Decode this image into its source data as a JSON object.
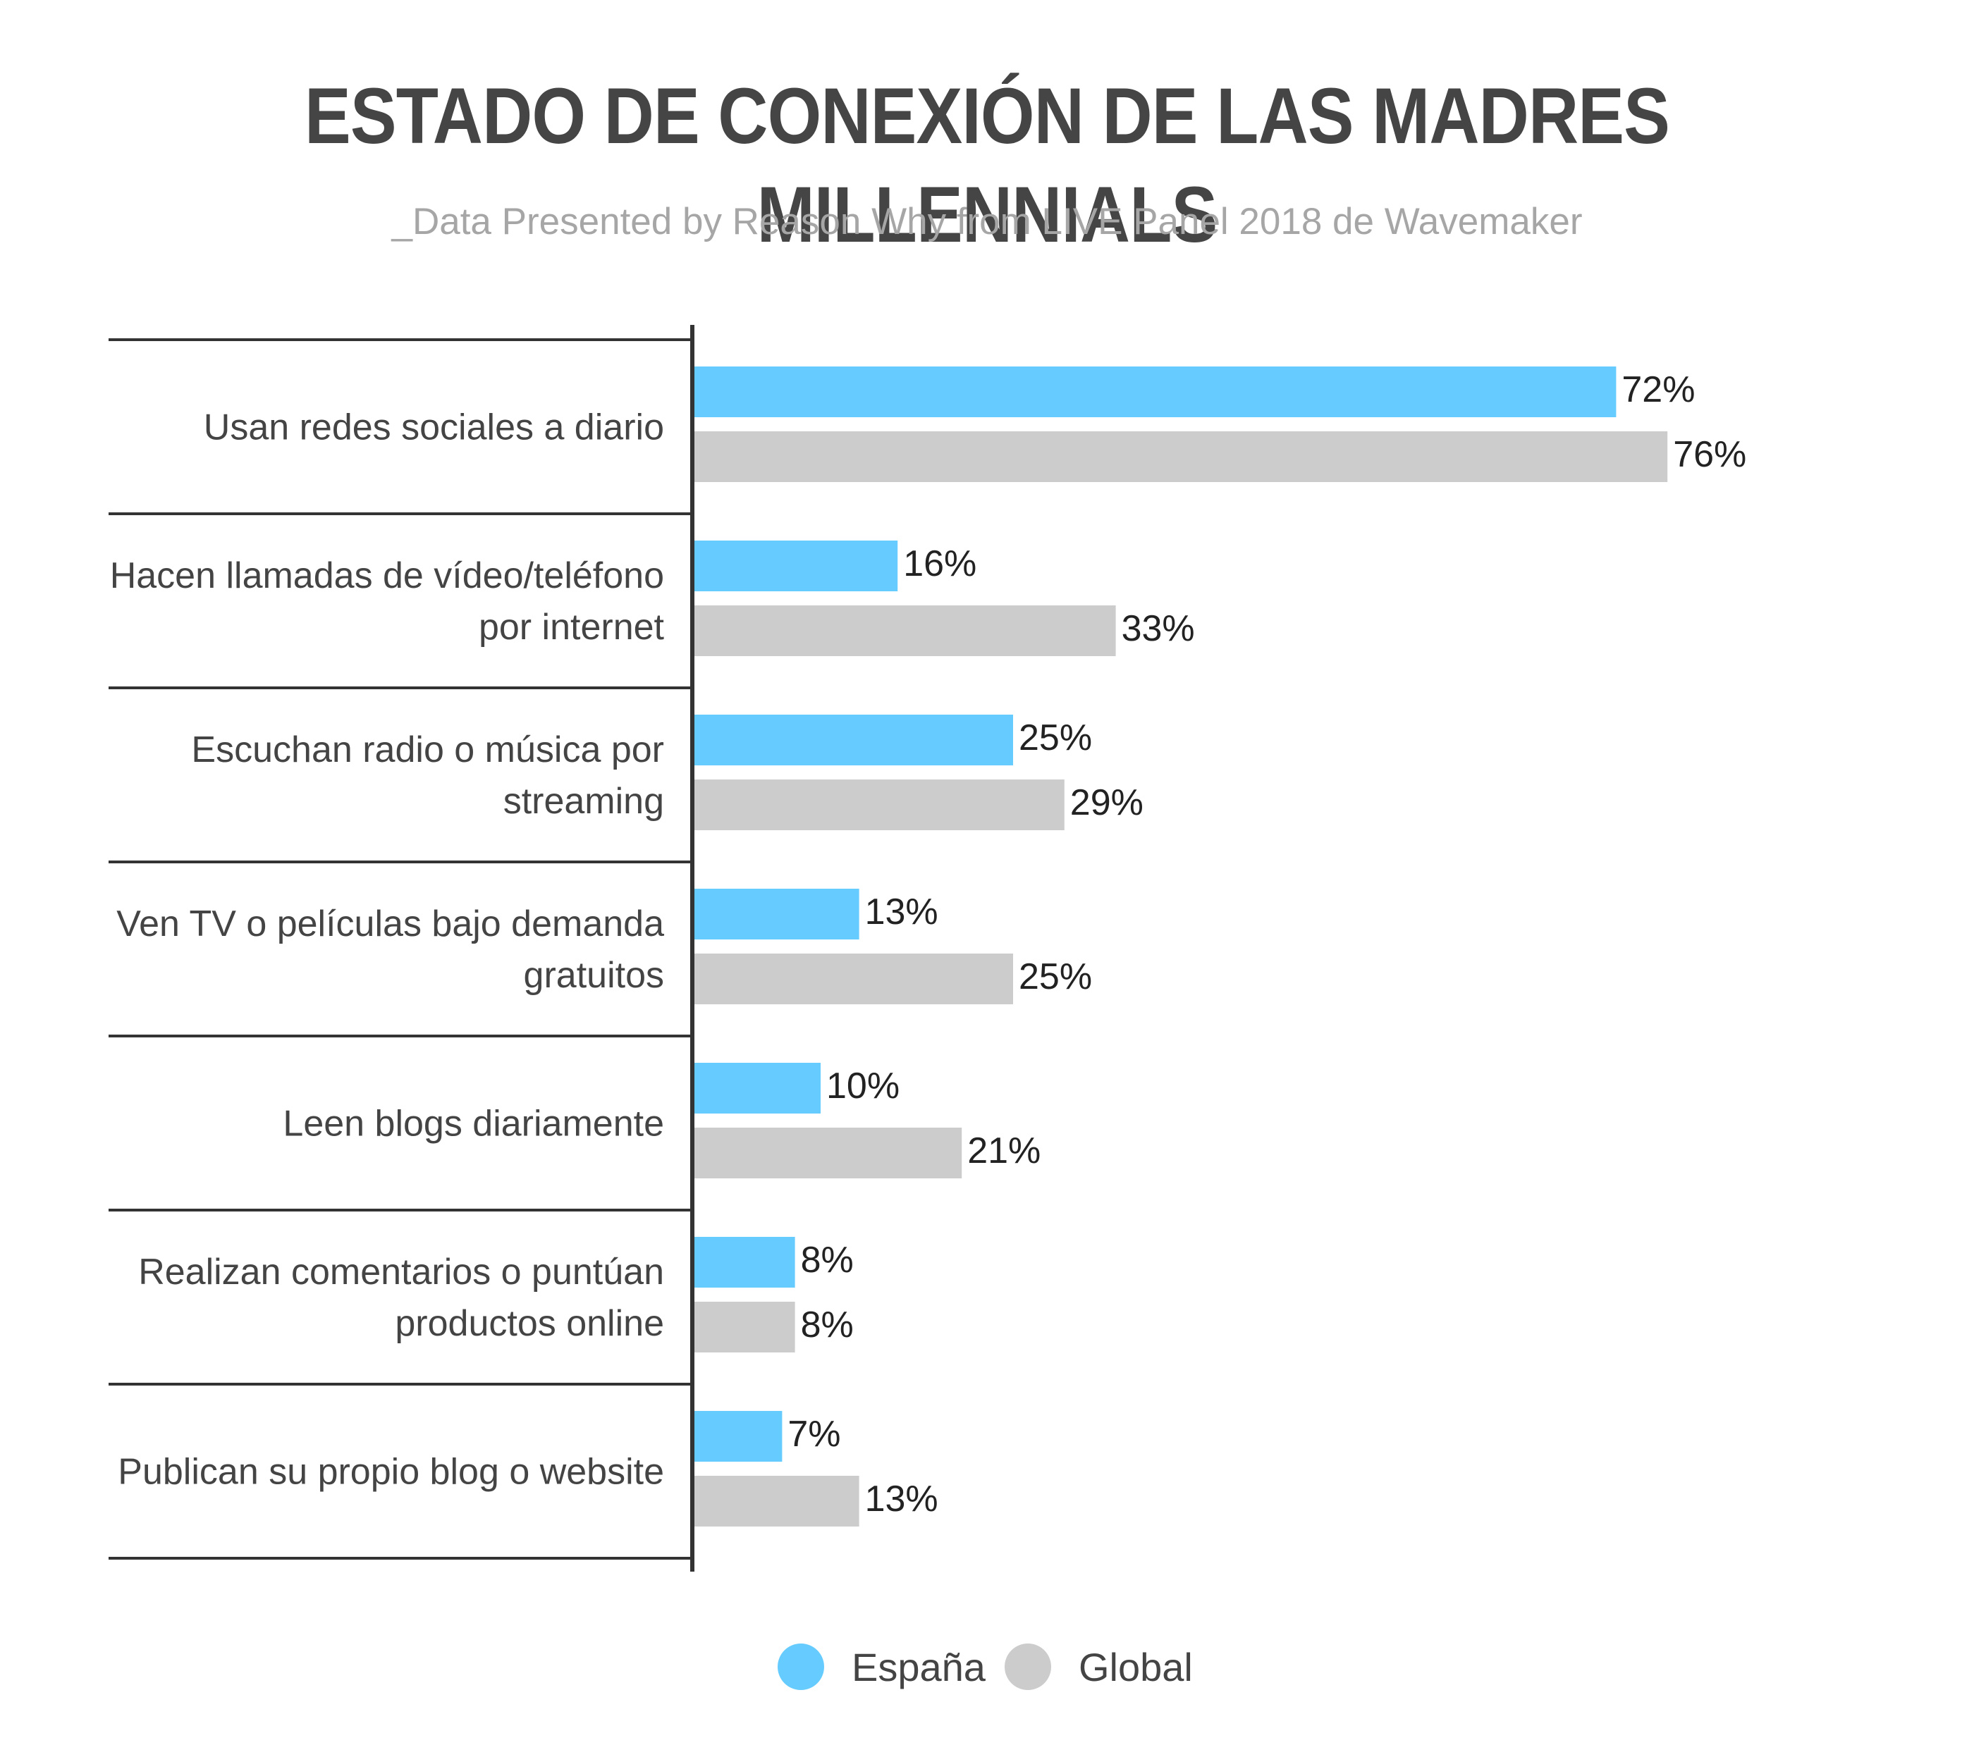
{
  "chart_data": {
    "type": "bar",
    "orientation": "horizontal",
    "title": "ESTADO DE CONEXIÓN DE LAS MADRES MILLENNIALS",
    "subtitle": "_Data Presented by Reason Why from LIVE Panel 2018 de Wavemaker",
    "categories": [
      [
        "Usan redes sociales a diario"
      ],
      [
        "Hacen llamadas de vídeo/teléfono",
        "por internet"
      ],
      [
        "Escuchan radio o música por",
        "streaming"
      ],
      [
        "Ven TV o películas bajo demanda",
        "gratuitos"
      ],
      [
        "Leen blogs diariamente"
      ],
      [
        "Realizan comentarios o puntúan",
        "productos online"
      ],
      [
        "Publican su propio blog o website"
      ]
    ],
    "series": [
      {
        "name": "España",
        "color": "#66ccff",
        "values": [
          72,
          16,
          25,
          13,
          10,
          8,
          7
        ],
        "labels": [
          "72%",
          "16%",
          "25%",
          "13%",
          "10%",
          "8%",
          "7%"
        ]
      },
      {
        "name": "Global",
        "color": "#cccccc",
        "values": [
          76,
          33,
          29,
          25,
          21,
          8,
          13
        ],
        "labels": [
          "76%",
          "33%",
          "29%",
          "25%",
          "21%",
          "8%",
          "13%"
        ]
      }
    ],
    "xlim": [
      0,
      100
    ],
    "grid": false,
    "legend_position": "bottom"
  }
}
